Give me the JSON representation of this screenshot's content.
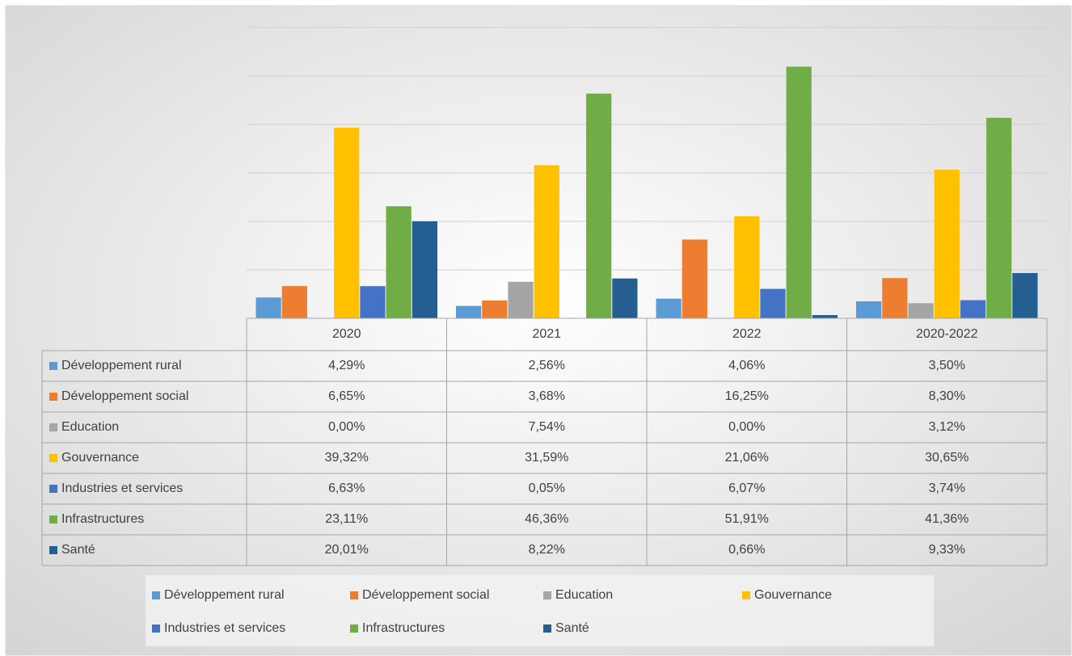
{
  "chart_data": {
    "type": "bar",
    "categories": [
      "2020",
      "2021",
      "2022",
      "2020-2022"
    ],
    "series": [
      {
        "name": "Développement rural",
        "color": "#5b9bd5",
        "values": [
          4.29,
          2.56,
          4.06,
          3.5
        ],
        "value_labels": [
          "4,29%",
          "2,56%",
          "4,06%",
          "3,50%"
        ]
      },
      {
        "name": "Développement social",
        "color": "#ed7d31",
        "values": [
          6.65,
          3.68,
          16.25,
          8.3
        ],
        "value_labels": [
          "6,65%",
          "3,68%",
          "16,25%",
          "8,30%"
        ]
      },
      {
        "name": "Education",
        "color": "#a5a5a5",
        "values": [
          0.0,
          7.54,
          0.0,
          3.12
        ],
        "value_labels": [
          "0,00%",
          "7,54%",
          "0,00%",
          "3,12%"
        ]
      },
      {
        "name": "Gouvernance",
        "color": "#ffc000",
        "values": [
          39.32,
          31.59,
          21.06,
          30.65
        ],
        "value_labels": [
          "39,32%",
          "31,59%",
          "21,06%",
          "30,65%"
        ]
      },
      {
        "name": "Industries et services",
        "color": "#4472c4",
        "values": [
          6.63,
          0.05,
          6.07,
          3.74
        ],
        "value_labels": [
          "6,63%",
          "0,05%",
          "6,07%",
          "3,74%"
        ]
      },
      {
        "name": "Infrastructures",
        "color": "#70ad47",
        "values": [
          23.11,
          46.36,
          51.91,
          41.36
        ],
        "value_labels": [
          "23,11%",
          "46,36%",
          "51,91%",
          "41,36%"
        ]
      },
      {
        "name": "Santé",
        "color": "#255e91",
        "values": [
          20.01,
          8.22,
          0.66,
          9.33
        ],
        "value_labels": [
          "20,01%",
          "8,22%",
          "0,66%",
          "9,33%"
        ]
      }
    ],
    "ylim": [
      0,
      60
    ],
    "yticks": [
      0,
      10,
      20,
      30,
      40,
      50,
      60
    ],
    "grid": true,
    "legend": "bottom"
  }
}
